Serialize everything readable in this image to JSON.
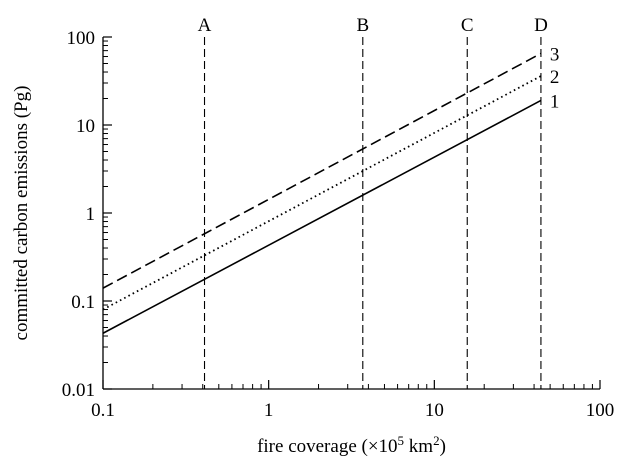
{
  "chart_data": {
    "type": "line",
    "scale": {
      "x": "log",
      "y": "log"
    },
    "xlim": [
      0.1,
      100
    ],
    "ylim": [
      0.01,
      100
    ],
    "xlabel": {
      "prefix": "fire coverage (×10",
      "exp1": "5",
      "mid": " km",
      "exp2": "2",
      "suffix": ")"
    },
    "ylabel": "committed carbon emissions (Pg)",
    "x_ticks": [
      {
        "value": 0.1,
        "label": "0.1"
      },
      {
        "value": 1,
        "label": "1"
      },
      {
        "value": 10,
        "label": "10"
      },
      {
        "value": 100,
        "label": "100"
      }
    ],
    "y_ticks": [
      {
        "value": 0.01,
        "label": "0.01"
      },
      {
        "value": 0.1,
        "label": "0.1"
      },
      {
        "value": 1,
        "label": "1"
      },
      {
        "value": 10,
        "label": "10"
      },
      {
        "value": 100,
        "label": "100"
      }
    ],
    "reference_lines": [
      {
        "label": "A",
        "x": 0.41
      },
      {
        "label": "B",
        "x": 3.7
      },
      {
        "label": "C",
        "x": 15.8
      },
      {
        "label": "D",
        "x": 44
      }
    ],
    "series": [
      {
        "label": "1",
        "style": "solid",
        "x": [
          0.1,
          44
        ],
        "y": [
          0.043,
          19
        ]
      },
      {
        "label": "2",
        "style": "dotted",
        "x": [
          0.1,
          44
        ],
        "y": [
          0.08,
          36
        ]
      },
      {
        "label": "3",
        "style": "dashed",
        "x": [
          0.1,
          44
        ],
        "y": [
          0.14,
          65
        ]
      }
    ],
    "grid": false,
    "colors": {
      "line": "#000000",
      "background": "#ffffff"
    }
  }
}
